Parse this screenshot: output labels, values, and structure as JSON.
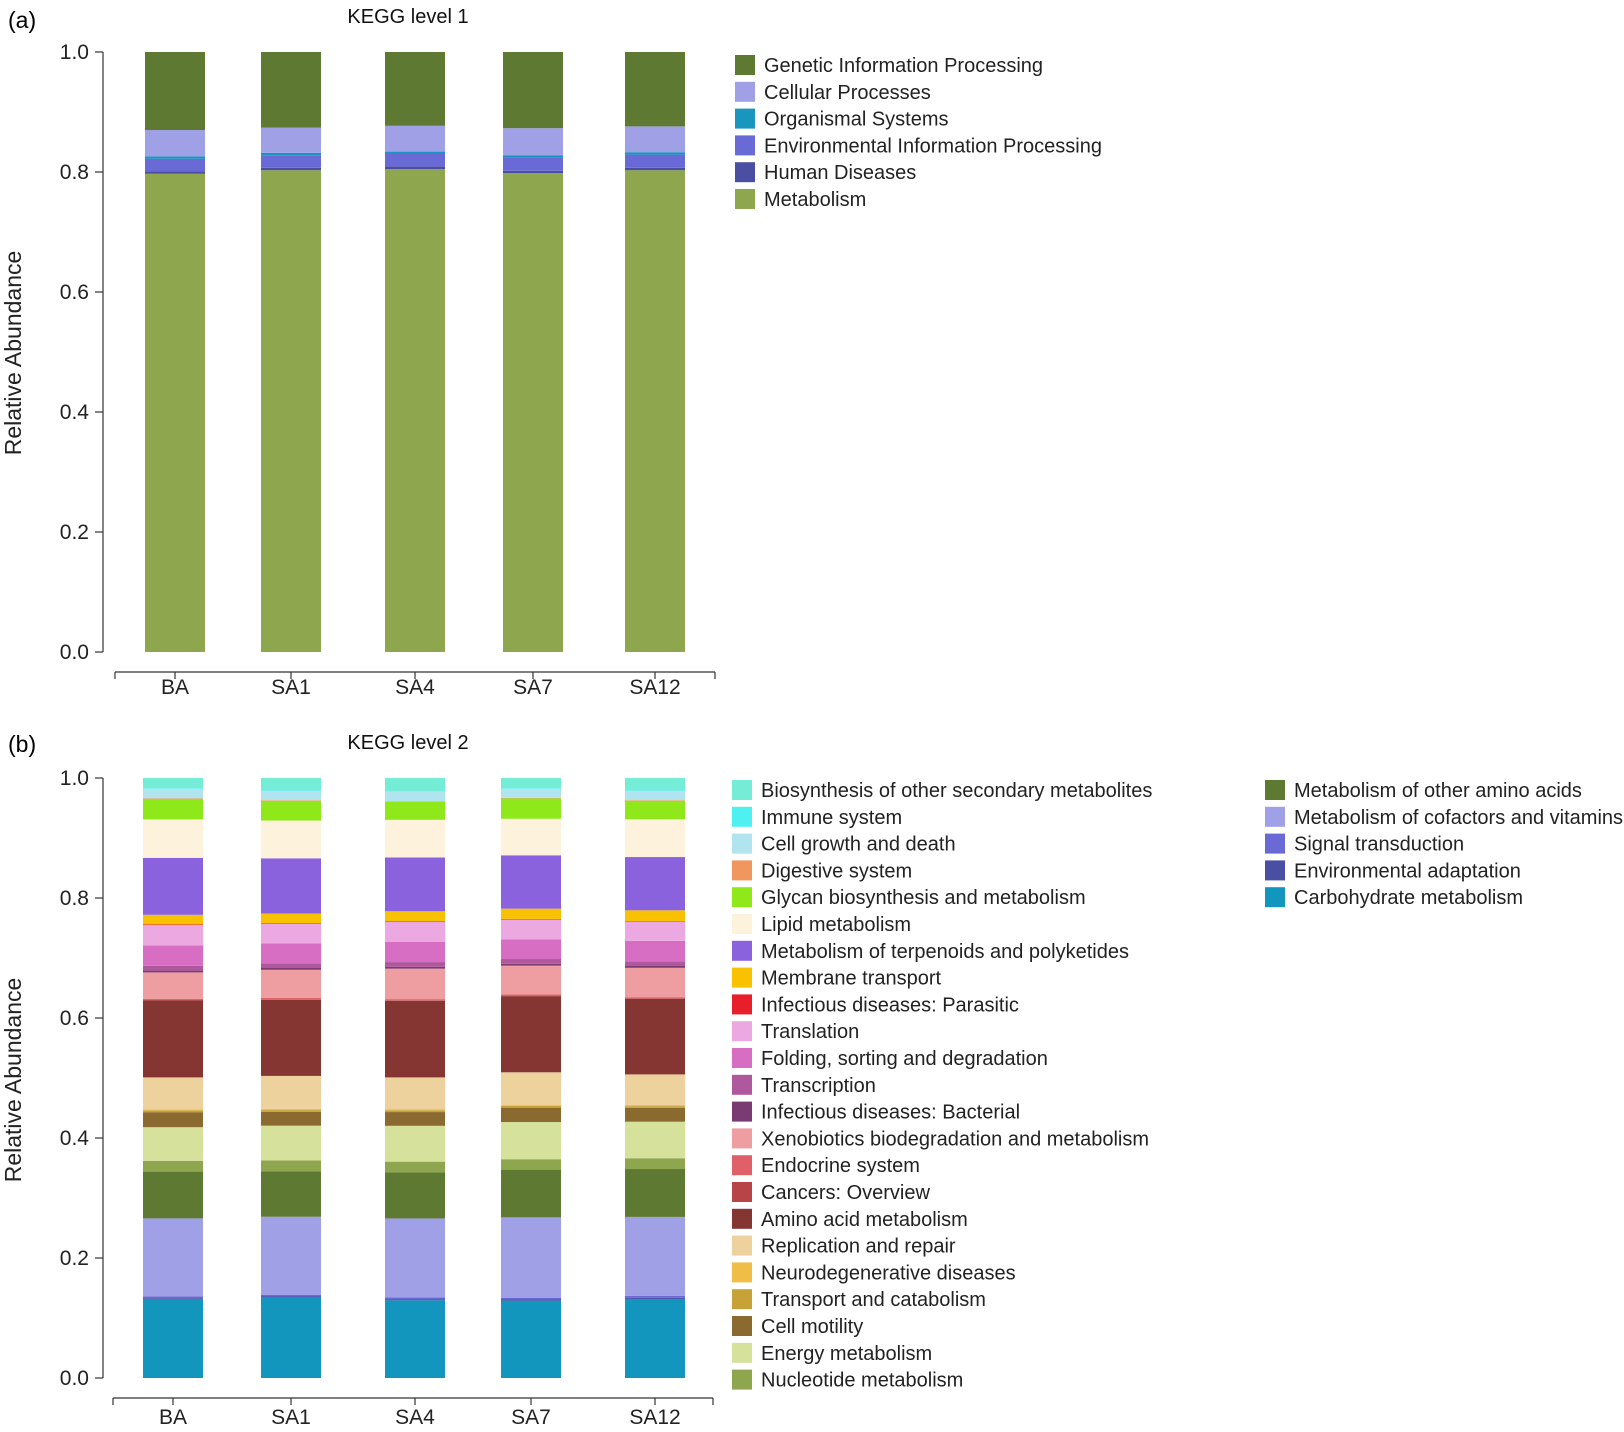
{
  "figure": {
    "panel_a_label": "(a)",
    "panel_b_label": "(b)"
  },
  "chart_data": [
    {
      "type": "bar",
      "stacked": true,
      "title": "KEGG level 1",
      "xlabel": "",
      "ylabel": "Relative Abundance",
      "ylim": [
        0,
        1
      ],
      "yticks": [
        "0.0",
        "0.2",
        "0.4",
        "0.6",
        "0.8",
        "1.0"
      ],
      "categories": [
        "BA",
        "SA1",
        "SA4",
        "SA7",
        "SA12"
      ],
      "legend_position": "right",
      "series": [
        {
          "name": "Metabolism",
          "color": "#8ea64e",
          "values": [
            0.797,
            0.803,
            0.805,
            0.798,
            0.803
          ]
        },
        {
          "name": "Human Diseases",
          "color": "#4b4fa3",
          "values": [
            0.004,
            0.004,
            0.004,
            0.004,
            0.004
          ]
        },
        {
          "name": "Environmental Information Processing",
          "color": "#6a6ad6",
          "values": [
            0.021,
            0.021,
            0.021,
            0.022,
            0.022
          ]
        },
        {
          "name": "Organismal Systems",
          "color": "#1896be",
          "values": [
            0.004,
            0.004,
            0.004,
            0.004,
            0.004
          ]
        },
        {
          "name": "Cellular Processes",
          "color": "#a0a0e6",
          "values": [
            0.044,
            0.042,
            0.043,
            0.045,
            0.043
          ]
        },
        {
          "name": "Genetic Information Processing",
          "color": "#5e7a32",
          "values": [
            0.13,
            0.126,
            0.123,
            0.127,
            0.124
          ]
        }
      ],
      "legend_order": [
        "Genetic Information Processing",
        "Cellular Processes",
        "Organismal Systems",
        "Environmental Information Processing",
        "Human Diseases",
        "Metabolism"
      ]
    },
    {
      "type": "bar",
      "stacked": true,
      "title": "KEGG level 2",
      "xlabel": "",
      "ylabel": "Relative Abundance",
      "ylim": [
        0,
        1
      ],
      "yticks": [
        "0.0",
        "0.2",
        "0.4",
        "0.6",
        "0.8",
        "1.0"
      ],
      "categories": [
        "BA",
        "SA1",
        "SA4",
        "SA7",
        "SA12"
      ],
      "legend_position": "right",
      "series": [
        {
          "name": "Carbohydrate metabolism",
          "color": "#1296be",
          "values": [
            0.131,
            0.134,
            0.13,
            0.129,
            0.132
          ]
        },
        {
          "name": "Environmental adaptation",
          "color": "#4b4fa3",
          "values": [
            0.002,
            0.002,
            0.002,
            0.002,
            0.002
          ]
        },
        {
          "name": "Signal transduction",
          "color": "#6a6ad6",
          "values": [
            0.003,
            0.003,
            0.003,
            0.003,
            0.003
          ]
        },
        {
          "name": "Metabolism of cofactors and vitamins",
          "color": "#a0a0e6",
          "values": [
            0.13,
            0.13,
            0.132,
            0.134,
            0.132
          ]
        },
        {
          "name": "Metabolism of other amino acids",
          "color": "#5e7a32",
          "values": [
            0.078,
            0.076,
            0.077,
            0.079,
            0.08
          ]
        },
        {
          "name": "Nucleotide metabolism",
          "color": "#8ea64e",
          "values": [
            0.018,
            0.018,
            0.018,
            0.018,
            0.018
          ]
        },
        {
          "name": "Energy metabolism",
          "color": "#d6e19c",
          "values": [
            0.056,
            0.058,
            0.06,
            0.062,
            0.061
          ]
        },
        {
          "name": "Cell motility",
          "color": "#8a6a2e",
          "values": [
            0.025,
            0.023,
            0.023,
            0.024,
            0.023
          ]
        },
        {
          "name": "Transport and catabolism",
          "color": "#c6a238",
          "values": [
            0.003,
            0.003,
            0.003,
            0.003,
            0.003
          ]
        },
        {
          "name": "Neurodegenerative diseases",
          "color": "#f0be46",
          "values": [
            0.002,
            0.002,
            0.002,
            0.002,
            0.002
          ]
        },
        {
          "name": "Replication and repair",
          "color": "#eed29e",
          "values": [
            0.053,
            0.055,
            0.053,
            0.054,
            0.051
          ]
        },
        {
          "name": "Amino acid metabolism",
          "color": "#853532",
          "values": [
            0.128,
            0.127,
            0.128,
            0.127,
            0.126
          ]
        },
        {
          "name": "Cancers: Overview",
          "color": "#b84448",
          "values": [
            0.001,
            0.001,
            0.001,
            0.001,
            0.001
          ]
        },
        {
          "name": "Endocrine system",
          "color": "#e0606a",
          "values": [
            0.002,
            0.002,
            0.002,
            0.002,
            0.002
          ]
        },
        {
          "name": "Xenobiotics biodegradation and metabolism",
          "color": "#ee9ea0",
          "values": [
            0.044,
            0.047,
            0.051,
            0.048,
            0.049
          ]
        },
        {
          "name": "Infectious diseases: Bacterial",
          "color": "#7a3a72",
          "values": [
            0.003,
            0.003,
            0.003,
            0.003,
            0.003
          ]
        },
        {
          "name": "Transcription",
          "color": "#b0589e",
          "values": [
            0.008,
            0.008,
            0.008,
            0.008,
            0.008
          ]
        },
        {
          "name": "Folding, sorting and degradation",
          "color": "#d86ec4",
          "values": [
            0.034,
            0.033,
            0.034,
            0.033,
            0.034
          ]
        },
        {
          "name": "Translation",
          "color": "#eca8e0",
          "values": [
            0.034,
            0.033,
            0.033,
            0.033,
            0.032
          ]
        },
        {
          "name": "Infectious diseases: Parasitic",
          "color": "#e81e2a",
          "values": [
            0.001,
            0.001,
            0.001,
            0.001,
            0.001
          ]
        },
        {
          "name": "Membrane transport",
          "color": "#f8c200",
          "values": [
            0.016,
            0.016,
            0.017,
            0.017,
            0.018
          ]
        },
        {
          "name": "Metabolism of terpenoids and polyketides",
          "color": "#8a62de",
          "values": [
            0.095,
            0.092,
            0.09,
            0.089,
            0.089
          ]
        },
        {
          "name": "Lipid metabolism",
          "color": "#fdf2dc",
          "values": [
            0.064,
            0.063,
            0.063,
            0.061,
            0.063
          ]
        },
        {
          "name": "Glycan biosynthesis and metabolism",
          "color": "#8ee81a",
          "values": [
            0.034,
            0.033,
            0.03,
            0.034,
            0.031
          ]
        },
        {
          "name": "Digestive system",
          "color": "#f0965e",
          "values": [
            0.001,
            0.001,
            0.001,
            0.001,
            0.001
          ]
        },
        {
          "name": "Cell growth and death",
          "color": "#b0e4ee",
          "values": [
            0.016,
            0.016,
            0.016,
            0.015,
            0.016
          ]
        },
        {
          "name": "Immune system",
          "color": "#4ef0f2",
          "values": [
            0.001,
            0.001,
            0.001,
            0.001,
            0.001
          ]
        },
        {
          "name": "Biosynthesis of other secondary metabolites",
          "color": "#74ecd6",
          "values": [
            0.017,
            0.02,
            0.022,
            0.017,
            0.02
          ]
        }
      ],
      "legend_columns": [
        [
          "Biosynthesis of other secondary metabolites",
          "Immune system",
          "Cell growth and death",
          "Digestive system",
          "Glycan biosynthesis and metabolism",
          "Lipid metabolism",
          "Metabolism of terpenoids and polyketides",
          "Membrane transport",
          "Infectious diseases: Parasitic",
          "Translation",
          "Folding, sorting and degradation",
          "Transcription",
          "Infectious diseases: Bacterial",
          "Xenobiotics biodegradation and metabolism",
          "Endocrine system",
          "Cancers: Overview",
          "Amino acid metabolism",
          "Replication and repair",
          "Neurodegenerative diseases",
          "Transport and catabolism",
          "Cell motility",
          "Energy metabolism",
          "Nucleotide metabolism"
        ],
        [
          "Metabolism of other amino acids",
          "Metabolism of cofactors and vitamins",
          "Signal transduction",
          "Environmental adaptation",
          "Carbohydrate metabolism"
        ]
      ]
    }
  ]
}
